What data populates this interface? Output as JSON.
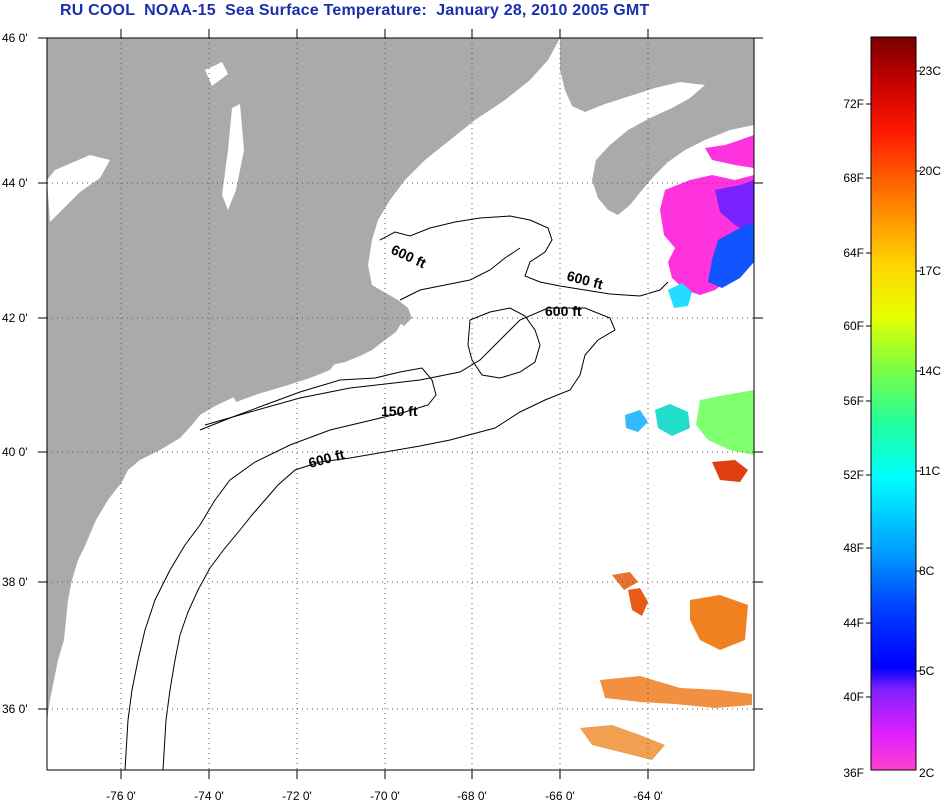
{
  "title": "RU COOL  NOAA-15  Sea Surface Temperature:  January 28, 2010 2005 GMT",
  "map": {
    "lat_labels": [
      "46 0'",
      "44 0'",
      "42 0'",
      "40 0'",
      "38 0'",
      "36 0'"
    ],
    "lon_labels": [
      "-76 0'",
      "-74 0'",
      "-72 0'",
      "-70 0'",
      "-68 0'",
      "-66 0'",
      "-64 0'"
    ],
    "contour_labels": [
      "600 ft",
      "600 ft",
      "600 ft",
      "150 ft",
      "600 ft"
    ],
    "colors": {
      "land": "#aaaaaa",
      "water": "#ffffff",
      "title": "#1a2fb0"
    }
  },
  "colorbar": {
    "fahrenheit_labels": [
      "72F",
      "68F",
      "64F",
      "60F",
      "56F",
      "52F",
      "48F",
      "44F",
      "40F",
      "36F"
    ],
    "celsius_labels": [
      "23C",
      "20C",
      "17C",
      "14C",
      "11C",
      "8C",
      "5C",
      "2C"
    ]
  }
}
